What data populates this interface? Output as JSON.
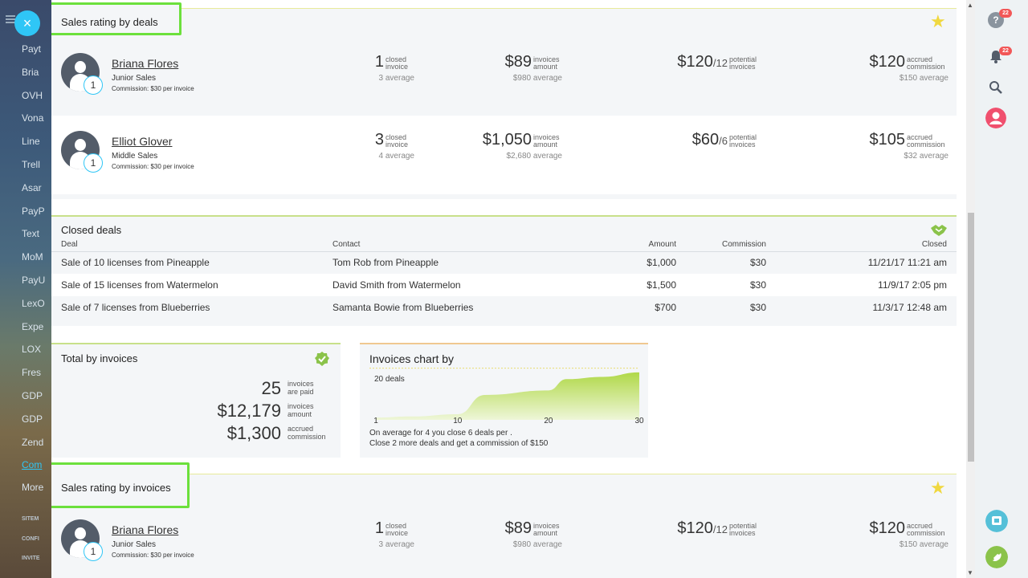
{
  "sidebar": {
    "items": [
      "Payt",
      "Bria",
      "OVH",
      "Vona",
      "Line",
      "Trell",
      "Asar",
      "PayP",
      "Text",
      "MoM",
      "PayU",
      "LexO",
      "Expe",
      "LOX",
      "Fres",
      "GDP",
      "GDP",
      "Zend",
      "Com",
      "More"
    ],
    "small_items": [
      "SITEM",
      "CONFI",
      "INVITE"
    ],
    "close_glyph": "×"
  },
  "right_panel": {
    "help_badge": "22",
    "notif_badge": "22",
    "help_glyph": "?"
  },
  "rating_deals": {
    "title": "Sales rating by deals",
    "people": [
      {
        "name": "Briana Flores",
        "role": "Junior Sales",
        "commission": "Commission: $30 per invoice",
        "rank": "1",
        "closed": "1",
        "closed_l1": "closed",
        "closed_l2": "invoice",
        "closed_avg": "3",
        "avg_word": "average",
        "amount": "$89",
        "amount_l1": "invoices",
        "amount_l2": "amount",
        "amount_avg": "$980",
        "potential": "$120",
        "potential_div": "/12",
        "potential_l1": "potential",
        "potential_l2": "invoices",
        "accrued": "$120",
        "accrued_l1": "accrued",
        "accrued_l2": "commission",
        "accrued_avg": "$150"
      },
      {
        "name": "Elliot Glover",
        "role": "Middle Sales",
        "commission": "Commission: $30 per invoice",
        "rank": "1",
        "closed": "3",
        "closed_l1": "closed",
        "closed_l2": "invoice",
        "closed_avg": "4",
        "avg_word": "average",
        "amount": "$1,050",
        "amount_l1": "invoices",
        "amount_l2": "amount",
        "amount_avg": "$2,680",
        "potential": "$60",
        "potential_div": "/6",
        "potential_l1": "potential",
        "potential_l2": "invoices",
        "accrued": "$105",
        "accrued_l1": "accrued",
        "accrued_l2": "commission",
        "accrued_avg": "$32"
      }
    ]
  },
  "closed_deals": {
    "title": "Closed deals",
    "columns": [
      "Deal",
      "Contact",
      "Amount",
      "Commission",
      "Closed"
    ],
    "rows": [
      [
        "Sale of 10 licenses from Pineapple",
        "Tom Rob from Pineapple",
        "$1,000",
        "$30",
        "11/21/17 11:21 am"
      ],
      [
        "Sale of 15 licenses from Watermelon",
        "David Smith from Watermelon",
        "$1,500",
        "$30",
        "11/9/17 2:05 pm"
      ],
      [
        "Sale of 7 licenses from Blueberries",
        "Samanta Bowie from Blueberries",
        "$700",
        "$30",
        "11/3/17 12:48 am"
      ]
    ]
  },
  "totals": {
    "title": "Total by invoices",
    "rows": [
      {
        "value": "25",
        "l1": "invoices",
        "l2": "are paid"
      },
      {
        "value": "$12,179",
        "l1": "invoices",
        "l2": "amount"
      },
      {
        "value": "$1,300",
        "l1": "accrued",
        "l2": "commission"
      }
    ]
  },
  "chart": {
    "title": "Invoices chart by",
    "ref_label": "20 deals",
    "ticks": [
      "1",
      "10",
      "20",
      "30"
    ],
    "note1": "On average for 4 you close 6 deals per .",
    "note2": "Close 2 more deals and get a commission of $150"
  },
  "chart_data": {
    "type": "area",
    "x": [
      1,
      5,
      10,
      13,
      20,
      22,
      26,
      30
    ],
    "y": [
      1,
      1.5,
      2.5,
      11,
      13,
      18,
      19,
      21
    ],
    "xlim": [
      1,
      30
    ],
    "ylim": [
      0,
      22
    ],
    "reference_line": 20,
    "colors": {
      "fill": "#b8dc50",
      "fill_light": "#e6f2c8"
    }
  },
  "rating_invoices": {
    "title": "Sales rating by invoices",
    "people": [
      {
        "name": "Briana Flores",
        "role": "Junior Sales",
        "commission": "Commission: $30 per invoice",
        "rank": "1",
        "closed": "1",
        "closed_l1": "closed",
        "closed_l2": "invoice",
        "closed_avg": "3",
        "avg_word": "average",
        "amount": "$89",
        "amount_l1": "invoices",
        "amount_l2": "amount",
        "amount_avg": "$980",
        "potential": "$120",
        "potential_div": "/12",
        "potential_l1": "potential",
        "potential_l2": "invoices",
        "accrued": "$120",
        "accrued_l1": "accrued",
        "accrued_l2": "commission",
        "accrued_avg": "$150"
      }
    ]
  },
  "colors": {
    "accent": "#2fc6f6",
    "highlight": "#6ce03c",
    "star": "#f0d840",
    "call": "#8bc34a",
    "avatar_bg": "#535c69"
  }
}
